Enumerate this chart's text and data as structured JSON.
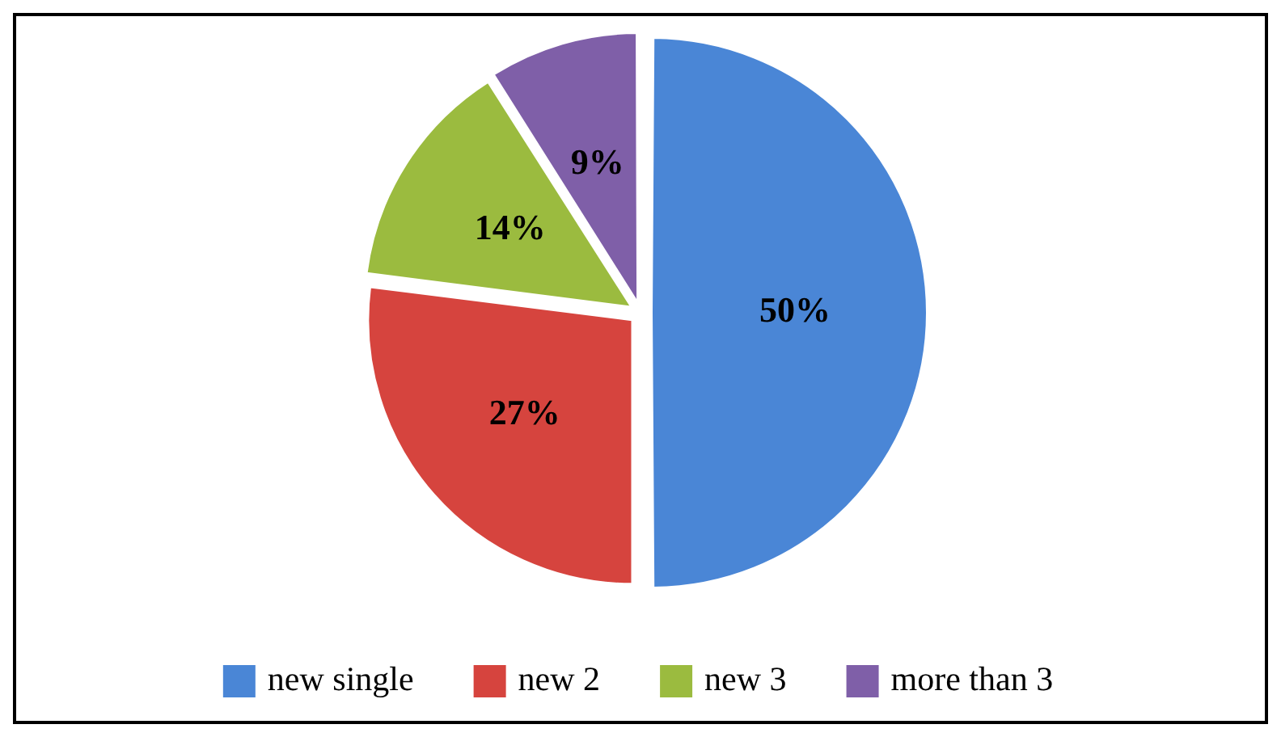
{
  "chart_data": {
    "type": "pie",
    "categories": [
      "new single",
      "new 2",
      "new 3",
      "more than 3"
    ],
    "values": [
      50,
      27,
      14,
      9
    ],
    "colors": [
      "#4a86d6",
      "#d6443e",
      "#9bbb3f",
      "#7f5fa8"
    ],
    "value_labels": [
      "50%",
      "27%",
      "14%",
      "9%"
    ],
    "legend": "bottom"
  }
}
